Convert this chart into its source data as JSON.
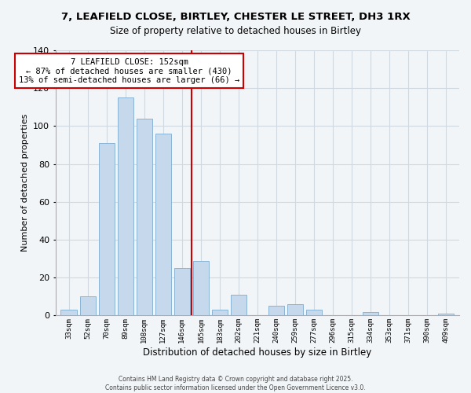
{
  "title": "7, LEAFIELD CLOSE, BIRTLEY, CHESTER LE STREET, DH3 1RX",
  "subtitle": "Size of property relative to detached houses in Birtley",
  "xlabel": "Distribution of detached houses by size in Birtley",
  "ylabel": "Number of detached properties",
  "bar_labels": [
    "33sqm",
    "52sqm",
    "70sqm",
    "89sqm",
    "108sqm",
    "127sqm",
    "146sqm",
    "165sqm",
    "183sqm",
    "202sqm",
    "221sqm",
    "240sqm",
    "259sqm",
    "277sqm",
    "296sqm",
    "315sqm",
    "334sqm",
    "353sqm",
    "371sqm",
    "390sqm",
    "409sqm"
  ],
  "bar_values": [
    3,
    10,
    91,
    115,
    104,
    96,
    25,
    29,
    3,
    11,
    0,
    5,
    6,
    3,
    0,
    0,
    2,
    0,
    0,
    0,
    1
  ],
  "bar_color": "#c6d9ec",
  "bar_edge_color": "#8ab4d4",
  "vline_color": "#cc0000",
  "annotation_title": "7 LEAFIELD CLOSE: 152sqm",
  "annotation_line1": "← 87% of detached houses are smaller (430)",
  "annotation_line2": "13% of semi-detached houses are larger (66) →",
  "annotation_box_color": "white",
  "annotation_box_edge": "#cc0000",
  "ylim": [
    0,
    140
  ],
  "yticks": [
    0,
    20,
    40,
    60,
    80,
    100,
    120,
    140
  ],
  "footer1": "Contains HM Land Registry data © Crown copyright and database right 2025.",
  "footer2": "Contains public sector information licensed under the Open Government Licence v3.0.",
  "bg_color": "#f2f5f8",
  "grid_color": "#d0d8e0",
  "title_fontsize": 9.5,
  "subtitle_fontsize": 8.5
}
